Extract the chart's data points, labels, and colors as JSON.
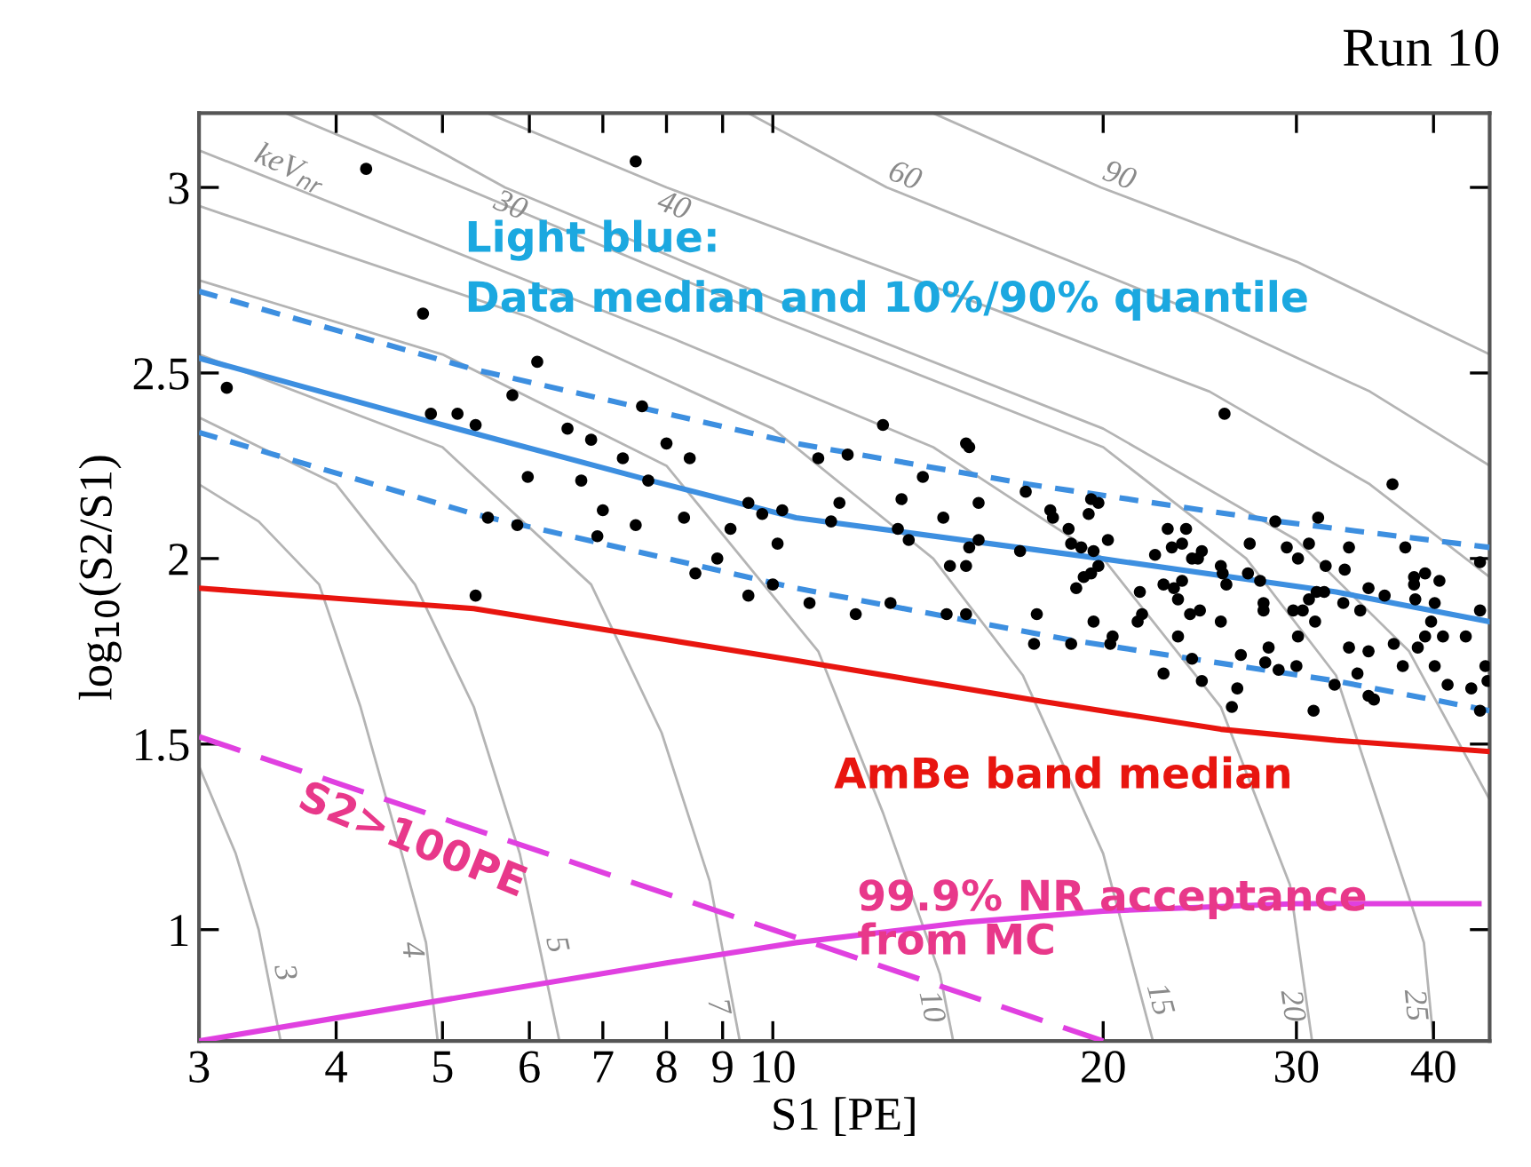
{
  "chart_data": {
    "type": "scatter",
    "title": "Run 10",
    "xlabel": "S1 [PE]",
    "ylabel": "log$_{10}$(S2/S1)",
    "log": "x",
    "grid": false,
    "legend": false,
    "xlim": [
      3,
      45
    ],
    "xticks": [
      3,
      4,
      5,
      6,
      7,
      8,
      9,
      10,
      20,
      30,
      40
    ],
    "ylim": [
      0.7,
      3.2
    ],
    "yticks": [
      1,
      1.5,
      2,
      2.5,
      3
    ],
    "annotations": [
      "Light blue:\nData median and 10%/90% quantile",
      "AmBe band median",
      "S2>100PE",
      "99.9% NR acceptance\nfrom MC",
      "keV$_{nr}$"
    ],
    "series": [
      {
        "marker": "circle",
        "color": "#000000",
        "x": [
          4.26,
          7.5,
          4.8,
          3.18,
          6.1,
          5.79,
          4.88,
          5.16,
          5.36,
          7.6,
          6.5,
          6.83,
          8.0,
          7.3,
          8.4,
          5.98,
          6.69,
          7.7,
          5.5,
          5.85,
          7.0,
          7.5,
          6.92,
          8.3,
          9.15,
          8.9,
          8.5,
          9.5,
          9.78,
          10.2,
          10.1,
          10.0,
          9.5,
          5.36,
          25.8,
          36.7,
          12.6,
          11.0,
          11.7,
          15.0,
          15.1,
          13.7,
          17.0,
          19.5,
          19.8,
          28.7,
          31.4,
          37.7,
          44.1,
          10.8,
          11.9,
          11.3,
          11.5,
          13.1,
          13.0,
          13.3,
          14.3,
          15.4,
          15.4,
          15.1,
          14.5,
          15.0,
          12.8,
          14.4,
          15.0,
          16.8,
          17.4,
          17.9,
          18.0,
          18.6,
          18.7,
          19.1,
          19.4,
          19.6,
          20.2,
          19.8,
          19.2,
          18.9,
          19.5,
          19.6,
          20.4,
          21.6,
          21.7,
          21.5,
          22.3,
          22.7,
          22.9,
          23.1,
          23.6,
          23.2,
          23.4,
          23.8,
          23.6,
          24.1,
          24.4,
          24.6,
          24.0,
          24.5,
          25.6,
          25.7,
          25.9,
          25.6,
          27.2,
          27.1,
          27.8,
          28.0,
          28.0,
          29.4,
          30.1,
          30.8,
          29.8,
          30.4,
          30.8,
          31.3,
          31.8,
          31.9,
          33.2,
          33.5,
          33.1,
          34.3,
          34.9,
          36.1,
          38.4,
          38.4,
          38.5,
          39.3,
          40.5,
          40.1,
          44.1,
          17.3,
          18.7,
          20.3,
          23.4,
          22.7,
          24.1,
          24.6,
          26.7,
          26.5,
          26.2,
          28.3,
          28.1,
          28.9,
          30.0,
          30.1,
          31.2,
          31.1,
          32.5,
          33.5,
          34.9,
          34.1,
          34.9,
          35.3,
          36.8,
          37.5,
          38.7,
          39.3,
          40.1,
          39.8,
          40.8,
          41.2,
          42.8,
          44.1,
          44.6,
          44.8,
          43.3
        ],
        "values": [
          3.05,
          3.07,
          2.66,
          2.46,
          2.53,
          2.44,
          2.39,
          2.39,
          2.36,
          2.41,
          2.35,
          2.32,
          2.31,
          2.27,
          2.27,
          2.22,
          2.21,
          2.21,
          2.11,
          2.09,
          2.13,
          2.09,
          2.06,
          2.11,
          2.08,
          2.0,
          1.96,
          2.15,
          2.12,
          2.13,
          2.04,
          1.93,
          1.9,
          1.9,
          2.39,
          2.2,
          2.36,
          2.27,
          2.28,
          2.31,
          2.3,
          2.22,
          2.18,
          2.16,
          2.15,
          2.1,
          2.11,
          2.03,
          1.99,
          1.88,
          1.85,
          2.1,
          2.15,
          2.16,
          2.08,
          2.05,
          2.11,
          2.15,
          2.05,
          2.03,
          1.98,
          1.98,
          1.88,
          1.85,
          1.85,
          2.02,
          1.85,
          2.13,
          2.11,
          2.08,
          2.04,
          2.03,
          2.12,
          2.02,
          2.05,
          1.98,
          1.95,
          1.92,
          1.96,
          1.83,
          1.79,
          1.91,
          1.85,
          1.83,
          2.01,
          1.93,
          2.08,
          2.03,
          2.04,
          1.92,
          1.89,
          2.08,
          1.94,
          2.0,
          2.0,
          2.02,
          1.85,
          1.86,
          1.98,
          1.96,
          1.93,
          1.83,
          2.04,
          1.96,
          1.94,
          1.88,
          1.86,
          2.03,
          2.0,
          2.04,
          1.86,
          1.86,
          1.89,
          1.91,
          1.91,
          1.98,
          1.97,
          2.03,
          1.88,
          1.86,
          1.92,
          1.9,
          1.95,
          1.93,
          1.89,
          1.96,
          1.94,
          1.88,
          1.86,
          1.77,
          1.77,
          1.77,
          1.79,
          1.69,
          1.73,
          1.67,
          1.74,
          1.65,
          1.6,
          1.76,
          1.72,
          1.7,
          1.71,
          1.79,
          1.83,
          1.59,
          1.66,
          1.76,
          1.75,
          1.69,
          1.63,
          1.62,
          1.77,
          1.71,
          1.76,
          1.79,
          1.71,
          1.83,
          1.79,
          1.66,
          1.79,
          1.59,
          1.71,
          1.67,
          1.65
        ]
      },
      {
        "type": "line",
        "line_style": "solid",
        "color": "#3d8fe0",
        "x": [
          3,
          4.72,
          7.74,
          10.5,
          19.9,
          32.6,
          45
        ],
        "values": [
          2.54,
          2.38,
          2.21,
          2.11,
          2.0,
          1.91,
          1.83
        ]
      },
      {
        "type": "line",
        "line_style": "dashed",
        "color": "#3d8fe0",
        "x": [
          3,
          5.34,
          10.5,
          17.1,
          28.9,
          45
        ],
        "values": [
          2.72,
          2.51,
          2.31,
          2.2,
          2.1,
          2.03
        ]
      },
      {
        "type": "line",
        "line_style": "dashed",
        "color": "#3d8fe0",
        "x": [
          3,
          5.34,
          10.5,
          18.7,
          32.6,
          45
        ],
        "values": [
          2.34,
          2.12,
          1.92,
          1.78,
          1.67,
          1.59
        ]
      },
      {
        "type": "line",
        "line_style": "solid",
        "color": "#e8150f",
        "x": [
          3,
          5.34,
          10.5,
          17.6,
          25.6,
          32.6,
          45
        ],
        "values": [
          1.92,
          1.865,
          1.725,
          1.615,
          1.54,
          1.51,
          1.48
        ]
      },
      {
        "type": "line",
        "line_style": "longdash",
        "color": "#e040e0",
        "x": [
          3,
          10,
          20
        ],
        "values": [
          1.52,
          1.0,
          0.7
        ]
      },
      {
        "type": "line",
        "line_style": "solid",
        "color": "#e040e0",
        "x": [
          3,
          5,
          8,
          10.5,
          15,
          20,
          30,
          44
        ],
        "values": [
          0.7,
          0.81,
          0.91,
          0.965,
          1.02,
          1.05,
          1.07,
          1.07
        ]
      },
      {
        "type": "line",
        "line_style": "solid",
        "color": "#b4b4b4",
        "name": "3",
        "x": [
          3,
          3.24,
          3.4,
          3.56
        ],
        "values": [
          1.44,
          1.205,
          1.0,
          0.7
        ]
      },
      {
        "type": "line",
        "line_style": "solid",
        "color": "#b4b4b4",
        "name": "4",
        "x": [
          3,
          3.4,
          3.86,
          4.21,
          4.59,
          4.83,
          4.95
        ],
        "values": [
          2.2,
          2.1,
          1.93,
          1.6,
          1.205,
          0.965,
          0.7
        ]
      },
      {
        "type": "line",
        "line_style": "solid",
        "color": "#b4b4b4",
        "name": "5",
        "x": [
          3,
          4,
          4.72,
          5.34,
          5.88,
          6.39
        ],
        "values": [
          2.38,
          2.2,
          1.93,
          1.6,
          1.205,
          0.7
        ]
      },
      {
        "type": "line",
        "line_style": "solid",
        "color": "#b4b4b4",
        "name": "7",
        "x": [
          3,
          5,
          6.83,
          7.92,
          8.76,
          9.33
        ],
        "values": [
          2.55,
          2.3,
          1.93,
          1.53,
          1.13,
          0.7
        ]
      },
      {
        "type": "line",
        "line_style": "solid",
        "color": "#b4b4b4",
        "name": "10",
        "x": [
          3,
          5,
          8,
          11,
          12.6,
          14.2,
          14.6
        ],
        "values": [
          2.75,
          2.55,
          2.25,
          1.75,
          1.315,
          0.88,
          0.7
        ]
      },
      {
        "type": "line",
        "line_style": "solid",
        "color": "#b4b4b4",
        "name": "15",
        "x": [
          3,
          6,
          10,
          14,
          16.9,
          20,
          22.2
        ],
        "values": [
          2.95,
          2.65,
          2.35,
          2.0,
          1.685,
          1.205,
          0.7
        ]
      },
      {
        "type": "line",
        "line_style": "solid",
        "color": "#b4b4b4",
        "name": "20",
        "x": [
          3,
          8,
          14,
          20,
          25.6,
          29.6,
          31
        ],
        "values": [
          3.1,
          2.6,
          2.3,
          2.0,
          1.6,
          1.12,
          0.7
        ]
      },
      {
        "type": "line",
        "line_style": "solid",
        "color": "#b4b4b4",
        "name": "25",
        "x": [
          3.6,
          10,
          20,
          27,
          32.6,
          39.2,
          40
        ],
        "values": [
          3.2,
          2.65,
          2.3,
          2.0,
          1.685,
          0.965,
          0.7
        ]
      },
      {
        "type": "line",
        "line_style": "solid",
        "color": "#b4b4b4",
        "name": "30",
        "x": [
          4.3,
          5.7,
          10,
          20,
          30,
          38,
          45
        ],
        "values": [
          3.2,
          3.0,
          2.7,
          2.35,
          2.05,
          1.75,
          1.35
        ]
      },
      {
        "type": "line",
        "line_style": "solid",
        "color": "#b4b4b4",
        "name": "40",
        "x": [
          5.5,
          8,
          15,
          25,
          35,
          45
        ],
        "values": [
          3.2,
          3.0,
          2.7,
          2.45,
          2.2,
          1.95
        ]
      },
      {
        "type": "line",
        "line_style": "solid",
        "color": "#b4b4b4",
        "name": "60",
        "x": [
          9.5,
          12.7,
          25,
          35,
          45
        ],
        "values": [
          3.2,
          3.0,
          2.65,
          2.45,
          2.25
        ]
      },
      {
        "type": "line",
        "line_style": "solid",
        "color": "#b4b4b4",
        "name": "90",
        "x": [
          14,
          19.9,
          30,
          45
        ],
        "values": [
          3.2,
          3.0,
          2.8,
          2.55
        ]
      }
    ]
  }
}
